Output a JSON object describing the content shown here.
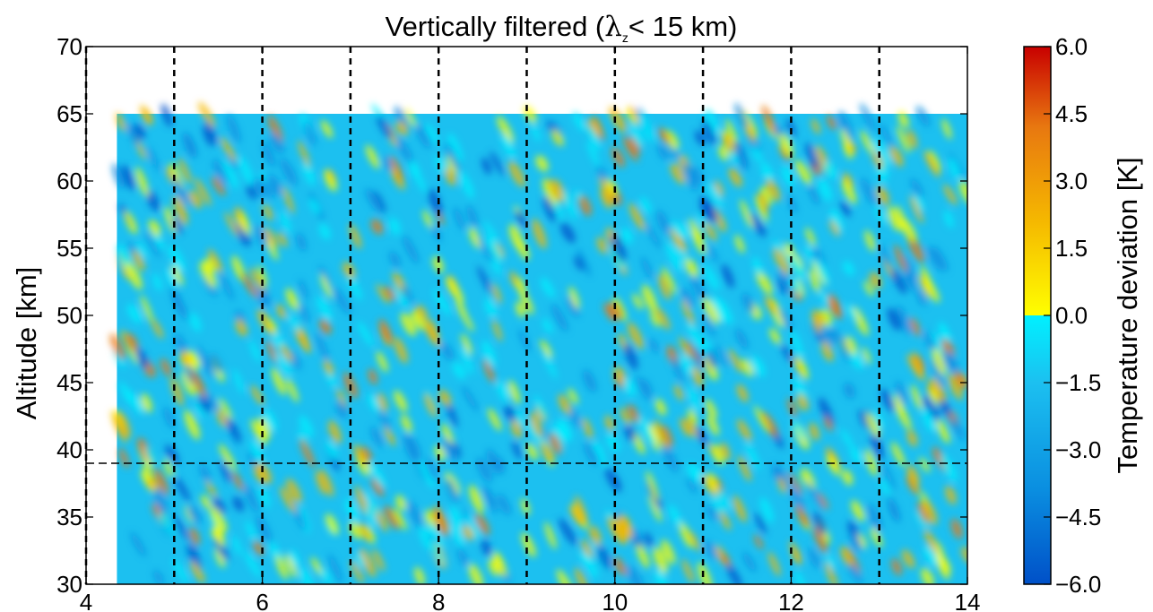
{
  "chart_data": {
    "type": "heatmap",
    "title": "Vertically filtered (",
    "title_symbol": "λ",
    "title_subscript": "z",
    "title_suffix": "< 15 km)",
    "xlabel": "",
    "ylabel": "Altitude [km]",
    "xlim": [
      4,
      14
    ],
    "ylim": [
      30,
      70
    ],
    "x_ticks": [
      "4",
      "6",
      "8",
      "10",
      "12",
      "14"
    ],
    "y_ticks": [
      "30",
      "35",
      "40",
      "45",
      "50",
      "55",
      "60",
      "65",
      "70"
    ],
    "data_extent": {
      "x": [
        4.35,
        14
      ],
      "y": [
        30,
        65
      ]
    },
    "vertical_reference_lines_x": [
      4,
      5,
      6,
      7,
      8,
      9,
      10,
      11,
      12,
      13
    ],
    "horizontal_reference_line_y": 39,
    "pattern": "alternating warm/cold bands tilted downward with increasing x",
    "colorbar": {
      "label": "Temperature deviation [K]",
      "range": [
        -6.0,
        6.0
      ],
      "ticks": [
        "6.0",
        "4.5",
        "3.0",
        "1.5",
        "0.0",
        "−1.5",
        "−3.0",
        "−4.5",
        "−6.0"
      ],
      "colors_negative": [
        "#0050c8",
        "#0a8ee0",
        "#1cc0f0",
        "#00f0ff"
      ],
      "colors_positive": [
        "#ffff00",
        "#f5b800",
        "#e87810",
        "#c80000"
      ]
    },
    "grid": false
  }
}
